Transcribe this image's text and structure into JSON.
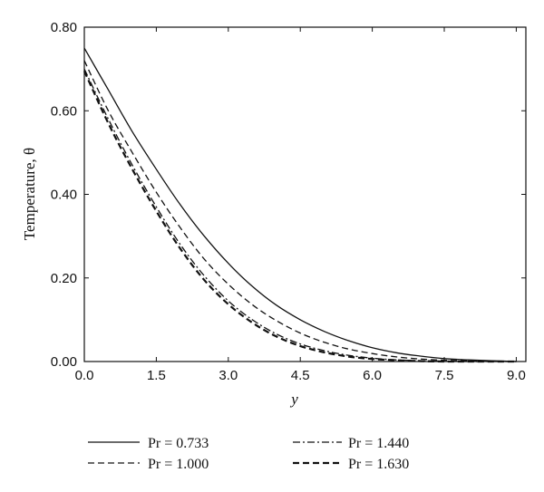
{
  "chart_data": {
    "type": "line",
    "xlabel": "y",
    "ylabel": "Temperature, θ",
    "xlim": [
      0,
      9.2
    ],
    "ylim": [
      0,
      0.8
    ],
    "xticks": [
      "0.0",
      "1.5",
      "3.0",
      "4.5",
      "6.0",
      "7.5",
      "9.0"
    ],
    "yticks": [
      "0.00",
      "0.20",
      "0.40",
      "0.60",
      "0.80"
    ],
    "grid": false,
    "legend_position": "bottom",
    "series": [
      {
        "name": "Pr = 0.733",
        "style": "solid",
        "x": [
          0,
          0.5,
          1.0,
          1.5,
          2.0,
          2.5,
          3.0,
          3.5,
          4.0,
          4.5,
          5.0,
          5.5,
          6.0,
          6.5,
          7.0,
          7.5,
          8.0,
          8.5,
          9.0
        ],
        "y": [
          0.75,
          0.65,
          0.55,
          0.46,
          0.375,
          0.3,
          0.235,
          0.18,
          0.135,
          0.1,
          0.072,
          0.05,
          0.033,
          0.021,
          0.013,
          0.007,
          0.004,
          0.002,
          0.0
        ]
      },
      {
        "name": "Pr = 1.000",
        "style": "dashed",
        "x": [
          0,
          0.5,
          1.0,
          1.5,
          2.0,
          2.5,
          3.0,
          3.5,
          4.0,
          4.5,
          5.0,
          5.5,
          6.0,
          6.5,
          7.0,
          7.5,
          8.0,
          8.5,
          9.0
        ],
        "y": [
          0.72,
          0.6,
          0.5,
          0.405,
          0.32,
          0.245,
          0.185,
          0.136,
          0.098,
          0.068,
          0.046,
          0.03,
          0.019,
          0.011,
          0.006,
          0.003,
          0.002,
          0.001,
          0.0
        ]
      },
      {
        "name": "Pr = 1.440",
        "style": "dashdot",
        "x": [
          0,
          0.5,
          1.0,
          1.5,
          2.0,
          2.5,
          3.0,
          3.5,
          4.0,
          4.5,
          5.0,
          5.5,
          6.0,
          6.5,
          7.0,
          7.5,
          8.0,
          8.5,
          9.0
        ],
        "y": [
          0.7,
          0.58,
          0.47,
          0.37,
          0.28,
          0.205,
          0.145,
          0.1,
          0.066,
          0.042,
          0.026,
          0.015,
          0.008,
          0.004,
          0.002,
          0.001,
          0.0,
          0.0,
          0.0
        ]
      },
      {
        "name": "Pr = 1.630",
        "style": "bold-dashed",
        "x": [
          0,
          0.5,
          1.0,
          1.5,
          2.0,
          2.5,
          3.0,
          3.5,
          4.0,
          4.5,
          5.0,
          5.5,
          6.0,
          6.5,
          7.0,
          7.5,
          8.0,
          8.5,
          9.0
        ],
        "y": [
          0.695,
          0.57,
          0.46,
          0.36,
          0.27,
          0.195,
          0.137,
          0.093,
          0.06,
          0.037,
          0.022,
          0.012,
          0.006,
          0.003,
          0.001,
          0.0,
          0.0,
          0.0,
          0.0
        ]
      }
    ]
  }
}
